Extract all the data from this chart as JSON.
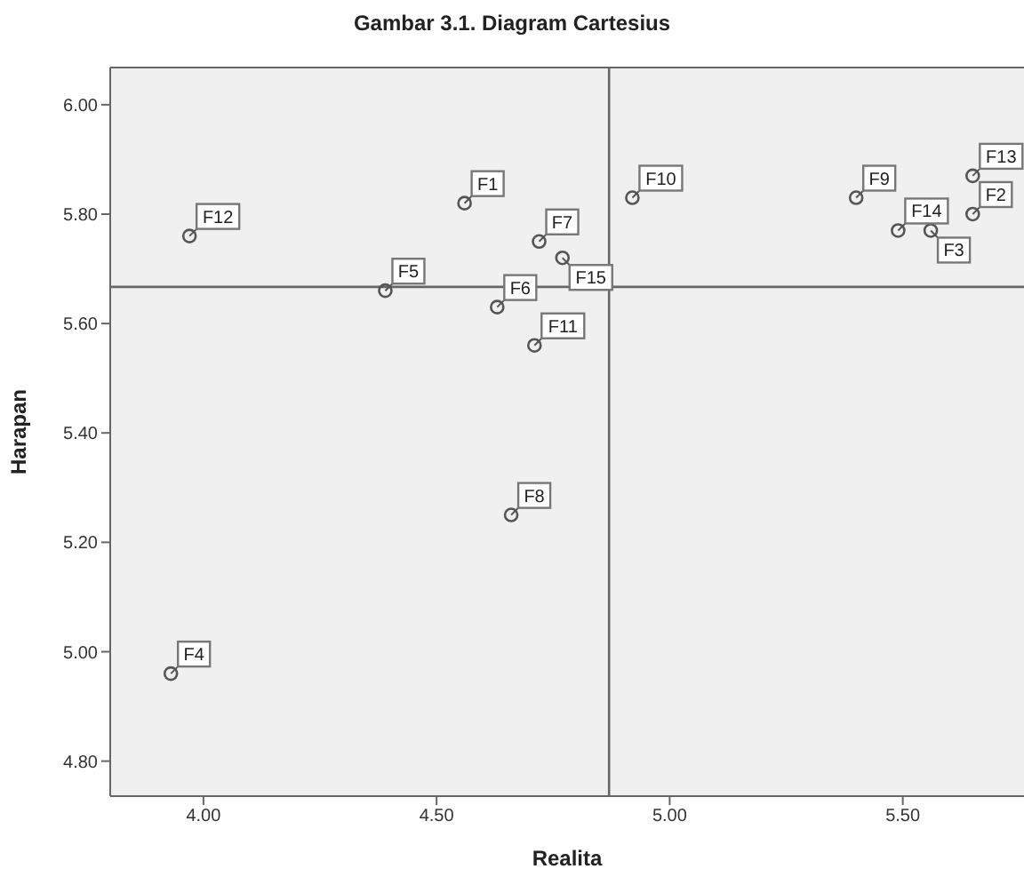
{
  "chart_data": {
    "type": "scatter",
    "title": "Gambar 3.1.  Diagram Cartesius",
    "xlabel": "Realita",
    "ylabel": "Harapan",
    "series": [
      {
        "color": "#555555",
        "x": [
          4.56,
          5.65,
          5.56,
          3.93,
          4.39,
          4.63,
          4.72,
          4.66,
          5.4,
          4.92,
          4.71,
          3.97,
          5.65,
          5.49,
          4.77
        ],
        "values": [
          5.82,
          5.8,
          5.77,
          4.96,
          5.66,
          5.63,
          5.75,
          5.25,
          5.83,
          5.83,
          5.56,
          5.76,
          5.87,
          5.77,
          5.72
        ],
        "value_labels": [
          "F1",
          "F2",
          "F3",
          "F4",
          "F5",
          "F6",
          "F7",
          "F8",
          "F9",
          "F10",
          "F11",
          "F12",
          "F13",
          "F14",
          "F15"
        ]
      }
    ],
    "xlim": [
      3.8,
      5.76
    ],
    "xticks": [
      {
        "value": 4,
        "label": "4.00"
      },
      {
        "value": 4.5,
        "label": "4.50"
      },
      {
        "value": 5,
        "label": "5.00"
      },
      {
        "value": 5.5,
        "label": "5.50"
      }
    ],
    "ylim": [
      4.736,
      6.068
    ],
    "yticks": [
      {
        "value": 4.8,
        "label": "4.80"
      },
      {
        "value": 5,
        "label": "5.00"
      },
      {
        "value": 5.2,
        "label": "5.20"
      },
      {
        "value": 5.4,
        "label": "5.40"
      },
      {
        "value": 5.6,
        "label": "5.60"
      },
      {
        "value": 5.8,
        "label": "5.80"
      },
      {
        "value": 6,
        "label": "6.00"
      }
    ],
    "ref_lines": [
      {
        "axis": "x",
        "value": 4.87,
        "color": "#666666"
      },
      {
        "axis": "y",
        "value": 5.667,
        "color": "#666666"
      }
    ],
    "legend": false,
    "marker": "circle"
  }
}
